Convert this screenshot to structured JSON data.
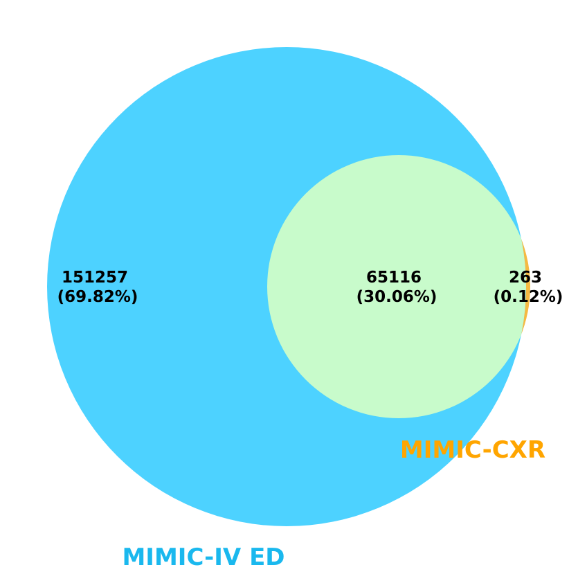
{
  "venn": {
    "sets": [
      {
        "name": "MIMIC-IV ED",
        "color": "#4dd2ff",
        "label_color": "#1ab8ee"
      },
      {
        "name": "MIMIC-CXR",
        "color": "#f5b942",
        "label_color": "#ffa500"
      }
    ],
    "intersection_color": "#c8fbcb",
    "regions": [
      {
        "id": "ed-only",
        "count": "151257",
        "percent": "(69.82%)"
      },
      {
        "id": "both",
        "count": "65116",
        "percent": "(30.06%)"
      },
      {
        "id": "cxr-only",
        "count": "263",
        "percent": "(0.12%)"
      }
    ]
  }
}
